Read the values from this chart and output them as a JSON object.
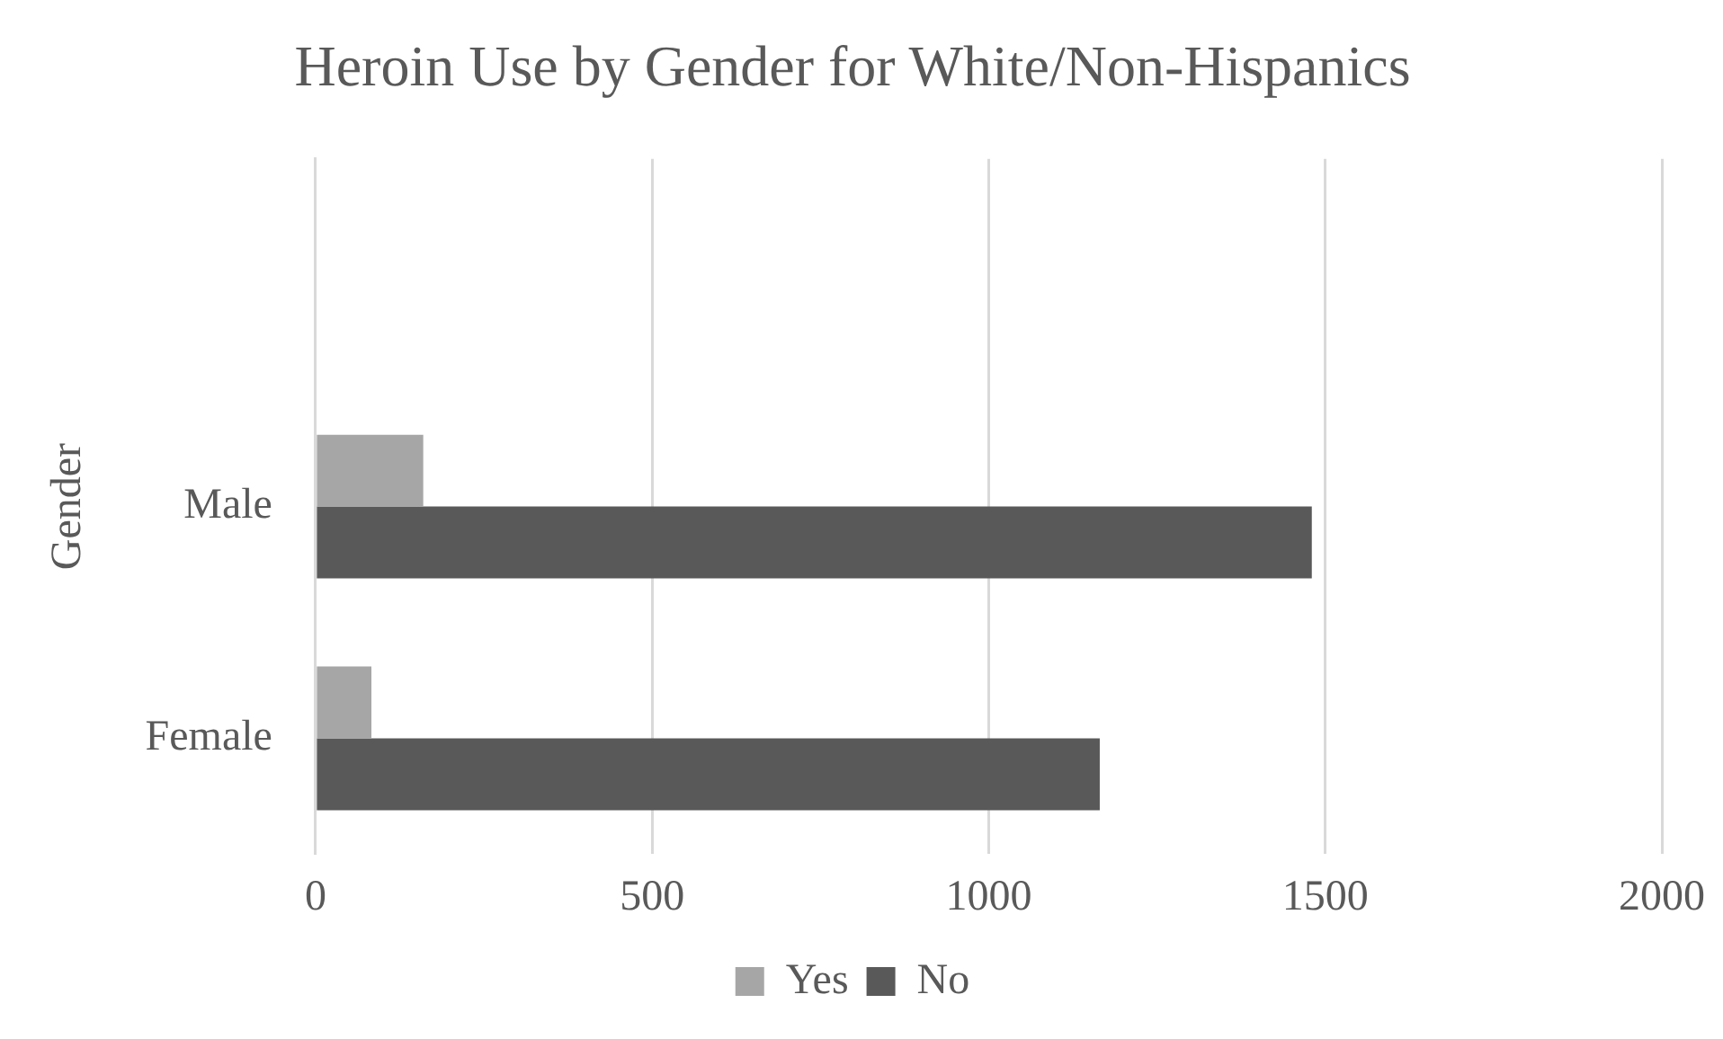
{
  "chart_data": {
    "type": "bar",
    "orientation": "horizontal",
    "title": "Heroin Use by Gender for White/Non-Hispanics",
    "ylabel": "Gender",
    "categories": [
      null,
      "Male",
      "Female"
    ],
    "series": [
      {
        "name": "Yes",
        "color": "#a6a6a6",
        "values": [
          null,
          160,
          83
        ]
      },
      {
        "name": "No",
        "color": "#595959",
        "values": [
          null,
          1480,
          1165
        ]
      }
    ],
    "xlim": [
      0,
      2000
    ],
    "xticks": [
      0,
      500,
      1000,
      1500,
      2000
    ],
    "grid": "x",
    "legend": "bottom"
  }
}
